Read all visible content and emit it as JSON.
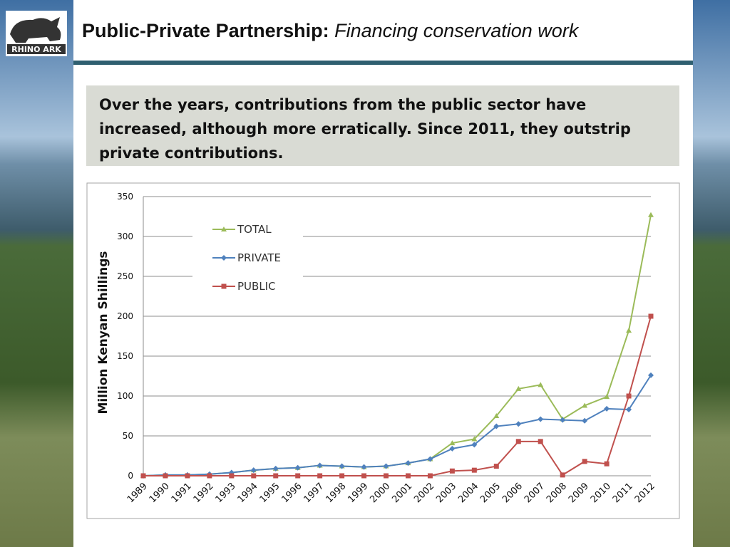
{
  "logo": {
    "text": "RHINO ARK"
  },
  "header": {
    "title_bold": "Public-Private Partnership:",
    "title_italic": "Financing conservation work"
  },
  "callout": {
    "text": "Over the years, contributions from the public sector have increased, although more erratically. Since 2011, they outstrip private contributions."
  },
  "chart_data": {
    "type": "line",
    "y_label": "Million Kenyan Shillings",
    "categories": [
      "1989",
      "1990",
      "1991",
      "1992",
      "1993",
      "1994",
      "1995",
      "1996",
      "1997",
      "1998",
      "1999",
      "2000",
      "2001",
      "2002",
      "2003",
      "2004",
      "2005",
      "2006",
      "2007",
      "2008",
      "2009",
      "2010",
      "2011",
      "2012"
    ],
    "series": [
      {
        "name": "TOTAL",
        "color": "#9bbb59",
        "marker": "triangle",
        "values": [
          0,
          1,
          1,
          2,
          4,
          7,
          9,
          10,
          13,
          12,
          11,
          12,
          16,
          21,
          41,
          46,
          75,
          109,
          114,
          71,
          88,
          99,
          182,
          327
        ]
      },
      {
        "name": "PRIVATE",
        "color": "#4f81bd",
        "marker": "diamond",
        "values": [
          0,
          1,
          1,
          2,
          4,
          7,
          9,
          10,
          13,
          12,
          11,
          12,
          16,
          21,
          34,
          39,
          62,
          65,
          71,
          70,
          69,
          84,
          83,
          126
        ]
      },
      {
        "name": "PUBLIC",
        "color": "#c0504d",
        "marker": "square",
        "values": [
          0,
          0,
          0,
          0,
          0,
          0,
          0,
          0,
          0,
          0,
          0,
          0,
          0,
          0,
          6,
          7,
          12,
          43,
          43,
          1,
          18,
          15,
          100,
          200
        ]
      }
    ],
    "ylim": [
      0,
      350
    ],
    "yticks": [
      0,
      50,
      100,
      150,
      200,
      250,
      300,
      350
    ],
    "grid": true,
    "legend": "upper-left"
  }
}
